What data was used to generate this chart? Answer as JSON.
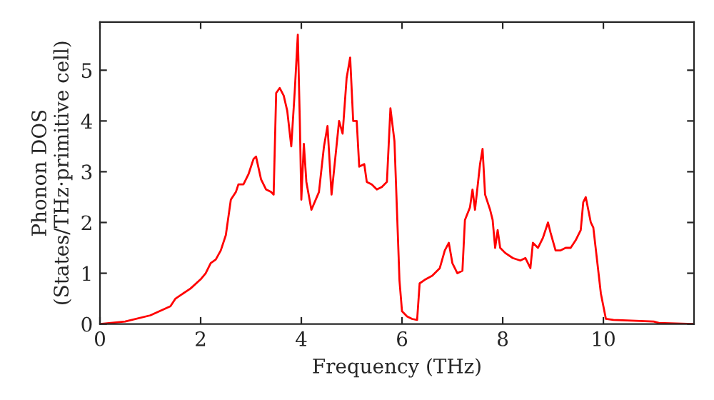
{
  "chart_data": {
    "type": "line",
    "xlabel": "Frequency (THz)",
    "ylabel": "Phonon DOS\n(States/THz·primitive cell)",
    "xlim": [
      0,
      11.8
    ],
    "ylim": [
      0,
      5.95
    ],
    "xticks": [
      0,
      2,
      4,
      6,
      8,
      10
    ],
    "yticks": [
      0,
      1,
      2,
      3,
      4,
      5
    ],
    "marker": "none",
    "line_style": "solid",
    "series": [
      {
        "color": "#ff0000",
        "x": [
          0,
          0.5,
          1.0,
          1.4,
          1.5,
          1.8,
          2.0,
          2.1,
          2.2,
          2.3,
          2.4,
          2.5,
          2.6,
          2.7,
          2.75,
          2.85,
          2.95,
          3.05,
          3.1,
          3.2,
          3.3,
          3.4,
          3.45,
          3.5,
          3.57,
          3.65,
          3.72,
          3.8,
          3.87,
          3.93,
          3.97,
          4.0,
          4.05,
          4.1,
          4.2,
          4.35,
          4.45,
          4.52,
          4.6,
          4.75,
          4.82,
          4.9,
          4.97,
          5.03,
          5.1,
          5.15,
          5.25,
          5.3,
          5.4,
          5.5,
          5.6,
          5.7,
          5.77,
          5.85,
          5.95,
          6.0,
          6.1,
          6.2,
          6.3,
          6.35,
          6.45,
          6.6,
          6.75,
          6.85,
          6.93,
          7.0,
          7.1,
          7.2,
          7.25,
          7.35,
          7.4,
          7.45,
          7.55,
          7.6,
          7.65,
          7.75,
          7.8,
          7.85,
          7.9,
          7.95,
          8.05,
          8.2,
          8.35,
          8.45,
          8.55,
          8.6,
          8.7,
          8.8,
          8.9,
          8.95,
          9.05,
          9.15,
          9.25,
          9.35,
          9.45,
          9.55,
          9.6,
          9.65,
          9.75,
          9.8,
          9.95,
          10.05,
          10.2,
          11.0,
          11.1,
          11.78
        ],
        "values": [
          0,
          0.05,
          0.17,
          0.35,
          0.5,
          0.7,
          0.88,
          1.0,
          1.2,
          1.27,
          1.45,
          1.75,
          2.45,
          2.6,
          2.75,
          2.75,
          2.95,
          3.25,
          3.3,
          2.85,
          2.65,
          2.6,
          2.55,
          4.55,
          4.65,
          4.5,
          4.2,
          3.5,
          4.6,
          5.7,
          4.0,
          2.45,
          3.55,
          2.8,
          2.25,
          2.6,
          3.5,
          3.9,
          2.55,
          4.0,
          3.75,
          4.85,
          5.25,
          4.0,
          4.0,
          3.1,
          3.15,
          2.8,
          2.75,
          2.65,
          2.7,
          2.8,
          4.25,
          3.6,
          0.85,
          0.25,
          0.15,
          0.1,
          0.08,
          0.8,
          0.87,
          0.95,
          1.1,
          1.45,
          1.6,
          1.2,
          1.0,
          1.05,
          2.05,
          2.3,
          2.65,
          2.25,
          3.15,
          3.45,
          2.55,
          2.25,
          2.05,
          1.5,
          1.85,
          1.5,
          1.4,
          1.3,
          1.25,
          1.3,
          1.1,
          1.6,
          1.5,
          1.7,
          2.0,
          1.8,
          1.45,
          1.45,
          1.5,
          1.5,
          1.65,
          1.85,
          2.4,
          2.5,
          2.0,
          1.9,
          0.6,
          0.1,
          0.08,
          0.05,
          0.02,
          0
        ]
      }
    ]
  }
}
